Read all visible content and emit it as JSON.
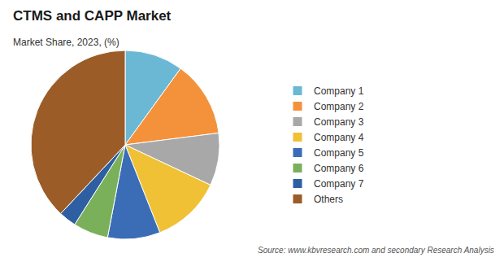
{
  "chart_data": {
    "type": "pie",
    "title": "CTMS and CAPP Market",
    "subtitle": "Market Share, 2023, (%)",
    "categories": [
      "Company 1",
      "Company 2",
      "Company 3",
      "Company 4",
      "Company 5",
      "Company 6",
      "Company 7",
      "Others"
    ],
    "values": [
      10,
      13,
      9,
      12,
      9,
      6,
      3,
      38
    ],
    "colors": [
      "#6BB8D4",
      "#F4923B",
      "#A8A8A8",
      "#F0C135",
      "#3A6DB5",
      "#7BB05A",
      "#2E5FA3",
      "#9B5C28"
    ],
    "legend": "right",
    "annotations": [
      "Source: www.kbvresearch.com and secondary Research Analysis"
    ]
  }
}
